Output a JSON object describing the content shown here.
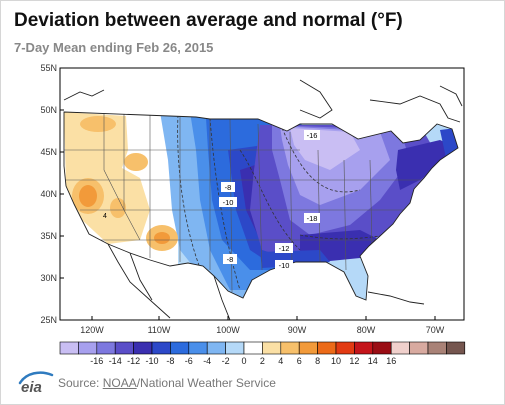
{
  "title": "Deviation between average and normal (°F)",
  "subtitle": "7-Day Mean ending Feb 26, 2015",
  "map": {
    "lat_labels": [
      "55N",
      "50N",
      "45N",
      "40N",
      "35N",
      "30N",
      "25N"
    ],
    "lon_labels": [
      "120W",
      "110W",
      "100W",
      "90W",
      "80W",
      "70W"
    ],
    "contour_labels": [
      "-16",
      "-8",
      "-10",
      "-18",
      "-12",
      "-10",
      "-8",
      "4"
    ]
  },
  "legend": {
    "ticks": [
      "-16",
      "-14",
      "-12",
      "-10",
      "-8",
      "-6",
      "-4",
      "-2",
      "0",
      "2",
      "4",
      "6",
      "8",
      "10",
      "12",
      "14",
      "16"
    ],
    "colors": [
      "#c9bef3",
      "#a7a0ee",
      "#7d78df",
      "#5a4ec8",
      "#3a2fb0",
      "#2c48c8",
      "#2c6bdd",
      "#4a8fea",
      "#7fb6f2",
      "#b5d9f8",
      "#ffffff",
      "#fbe0a5",
      "#f7c06b",
      "#f29a3a",
      "#ec6a18",
      "#e23a12",
      "#c4141a",
      "#9a0d14",
      "#f0d0cc",
      "#d8aaa0",
      "#a98277",
      "#75564f"
    ]
  },
  "logo": {
    "text": "eia"
  },
  "source": {
    "prefix": "Source:",
    "link": "NOAA",
    "suffix": "/National Weather Service"
  }
}
